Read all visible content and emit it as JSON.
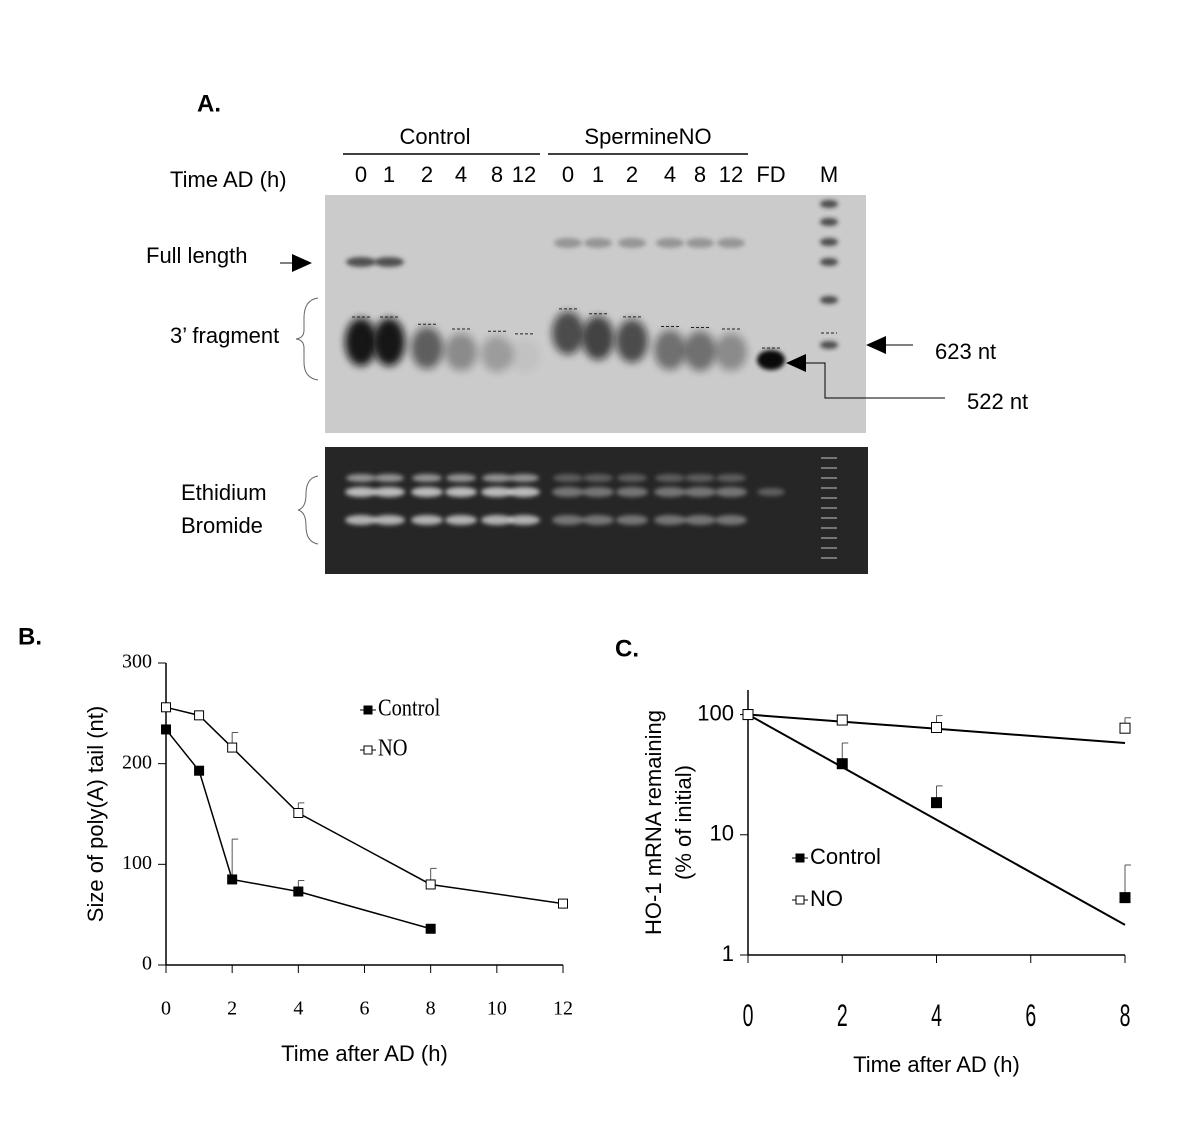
{
  "panel_a": {
    "label": "A.",
    "groups": [
      "Control",
      "SpermineNO"
    ],
    "row_label": "Time AD (h)",
    "lanes": [
      "0",
      "1",
      "2",
      "4",
      "8",
      "12",
      "0",
      "1",
      "2",
      "4",
      "8",
      "12",
      "FD",
      "M"
    ],
    "band_labels": [
      "Full length",
      "3’ fragment"
    ],
    "markers": [
      "623 nt",
      "522 nt"
    ],
    "stain_label": [
      "Ethidium",
      "Bromide"
    ]
  },
  "chart_data": [
    {
      "type": "line",
      "panel": "B.",
      "ylabel": [
        "Size of  poly(A) tail (nt)"
      ],
      "xlabel": "Time after AD (h)",
      "xlim": [
        0,
        12
      ],
      "xticks": [
        0,
        2,
        4,
        6,
        8,
        10,
        12
      ],
      "ylim": [
        0,
        300
      ],
      "yticks": [
        0,
        100,
        200,
        300
      ],
      "series": [
        {
          "name": "Control",
          "color": "#000000",
          "fill": "#000000",
          "x": [
            0,
            1,
            2,
            4,
            8
          ],
          "values": [
            234,
            193,
            85,
            73,
            36
          ],
          "errors": [
            null,
            null,
            40,
            11,
            null
          ]
        },
        {
          "name": "NO",
          "color": "#000000",
          "fill": "#ffffff",
          "x": [
            0,
            1,
            2,
            4,
            8,
            12
          ],
          "values": [
            256,
            248,
            216,
            151,
            80,
            61
          ],
          "errors": [
            null,
            null,
            15,
            10,
            16,
            null
          ]
        }
      ]
    },
    {
      "type": "scatter",
      "panel": "C.",
      "ylog": true,
      "ylabel": [
        "HO-1 mRNA remaining",
        "(% of initial)"
      ],
      "xlabel": "Time after AD (h)",
      "xlim": [
        0,
        8
      ],
      "xticks": [
        0,
        2,
        4,
        6,
        8
      ],
      "ylim": [
        1,
        160
      ],
      "yticks": [
        1,
        10,
        100
      ],
      "series": [
        {
          "name": "Control",
          "color": "#000000",
          "fill": "#000000",
          "x": [
            0,
            2,
            4,
            8
          ],
          "values": [
            100,
            39,
            18.5,
            3.0
          ],
          "errors": [
            null,
            19,
            7,
            2.6
          ],
          "fit_x": [
            0,
            8
          ],
          "fit_values": [
            100,
            1.78
          ]
        },
        {
          "name": "NO",
          "color": "#000000",
          "fill": "#ffffff",
          "x": [
            0,
            2,
            4,
            8
          ],
          "values": [
            100,
            90,
            78,
            77
          ],
          "errors": [
            null,
            null,
            20,
            17
          ],
          "fit_x": [
            0,
            8
          ],
          "fit_values": [
            100,
            58
          ]
        }
      ]
    }
  ]
}
